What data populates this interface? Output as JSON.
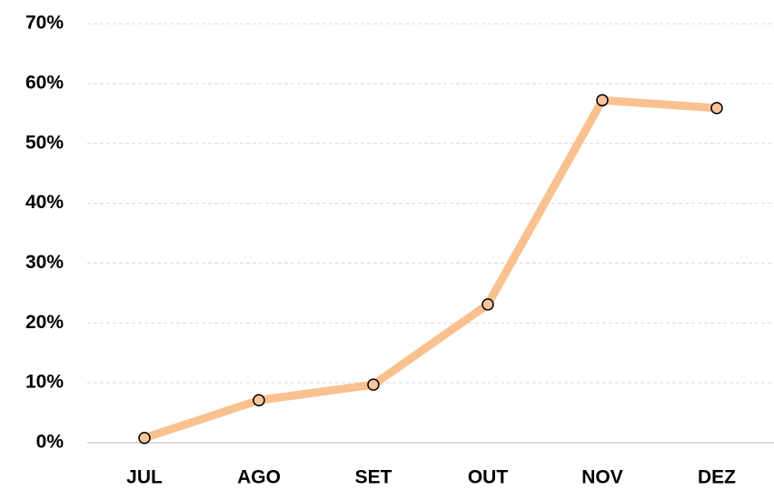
{
  "chart_data": {
    "type": "line",
    "categories": [
      "JUL",
      "AGO",
      "SET",
      "OUT",
      "NOV",
      "DEZ"
    ],
    "values": [
      0.8,
      7.1,
      9.7,
      23.1,
      57.2,
      55.9
    ],
    "color": "#f9c18f",
    "marker_color": "#fbc49a",
    "ylim": [
      0,
      70
    ],
    "yticks": [
      {
        "value": 0,
        "label": "0%"
      },
      {
        "value": 10,
        "label": "10%"
      },
      {
        "value": 20,
        "label": "20%"
      },
      {
        "value": 30,
        "label": "30%"
      },
      {
        "value": 40,
        "label": "40%"
      },
      {
        "value": 50,
        "label": "50%"
      },
      {
        "value": 60,
        "label": "60%"
      },
      {
        "value": 70,
        "label": "70%"
      }
    ],
    "grid": true
  }
}
